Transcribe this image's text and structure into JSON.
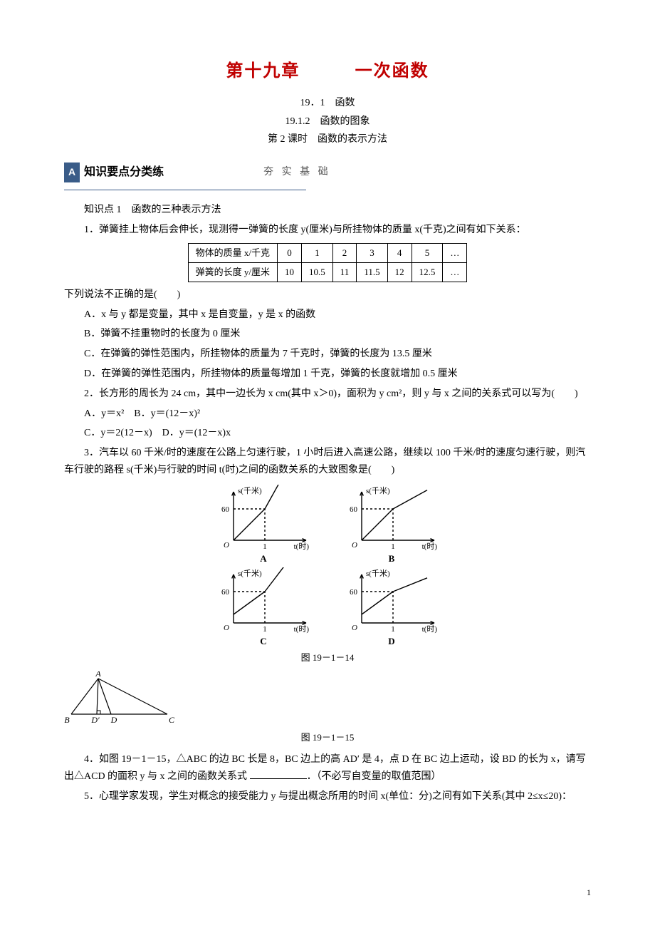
{
  "chapter": {
    "left": "第十九章",
    "right": "一次函数"
  },
  "headings": {
    "h1": "19．1　函数",
    "h2": "19.1.2　函数的图象",
    "h3": "第 2 课时　函数的表示方法"
  },
  "banner": {
    "box": "A",
    "text": "知识要点分类练",
    "tail": "夯 实 基 础"
  },
  "kp1_title": "知识点 1　函数的三种表示方法",
  "q1": {
    "stem": "1．弹簧挂上物体后会伸长，现测得一弹簧的长度 y(厘米)与所挂物体的质量 x(千克)之间有如下关系：",
    "table": {
      "row1_header": "物体的质量 x/千克",
      "row2_header": "弹簧的长度 y/厘米",
      "cols": [
        "0",
        "1",
        "2",
        "3",
        "4",
        "5",
        "…"
      ],
      "row2": [
        "10",
        "10.5",
        "11",
        "11.5",
        "12",
        "12.5",
        "…"
      ]
    },
    "tail": "下列说法不正确的是(　　)",
    "optA": "A．x 与 y 都是变量，其中 x 是自变量，y 是 x 的函数",
    "optB": "B．弹簧不挂重物时的长度为 0 厘米",
    "optC": "C．在弹簧的弹性范围内，所挂物体的质量为 7 千克时，弹簧的长度为 13.5 厘米",
    "optD": "D．在弹簧的弹性范围内，所挂物体的质量每增加 1 千克，弹簧的长度就增加 0.5 厘米"
  },
  "q2": {
    "stem": "2．长方形的周长为 24 cm，其中一边长为 x cm(其中 x＞0)，面积为 y cm²，则 y 与 x 之间的关系式可以写为(　　)",
    "optA": "A．y＝x²　B．y＝(12－x)²",
    "optC": "C．y＝2(12－x)　D．y＝(12－x)x"
  },
  "q3": {
    "stem": "3．汽车以 60 千米/时的速度在公路上匀速行驶，1 小时后进入高速公路，继续以 100 千米/时的速度匀速行驶，则汽车行驶的路程 s(千米)与行驶的时间 t(时)之间的函数关系的大致图象是(　　)",
    "charts": {
      "yLabel": "s(千米)",
      "xLabel": "t(时)",
      "yTick": "60",
      "xTick": "1",
      "labels": [
        "A",
        "B",
        "C",
        "D"
      ],
      "variants": [
        {
          "startAtOrigin": true,
          "steeperAfter": true
        },
        {
          "startAtOrigin": true,
          "steeperAfter": false
        },
        {
          "startAtOrigin": false,
          "steeperAfter": true
        },
        {
          "startAtOrigin": false,
          "steeperAfter": false
        }
      ],
      "axis_color": "#000",
      "dash_color": "#000",
      "line_width": 1.4
    },
    "fig14": "图 19－1－14"
  },
  "triangle": {
    "labels": {
      "A": "A",
      "B": "B",
      "C": "C",
      "D": "D",
      "Dp": "D'"
    },
    "coords": {
      "B": [
        10,
        60
      ],
      "Dp": [
        46,
        60
      ],
      "D": [
        66,
        60
      ],
      "C": [
        145,
        60
      ],
      "A": [
        48,
        10
      ]
    },
    "line_width": 1.2,
    "color": "#000"
  },
  "fig15": "图 19－1－15",
  "q4": {
    "stem_a": "4．如图 19－1－15，△ABC 的边 BC 长是 8，BC 边上的高 AD′ 是 4，点 D 在 BC 边上运动，设 BD 的长为 x，请写出△ACD 的面积 y 与 x 之间的函数关系式 ",
    "stem_b": "．（不必写自变量的取值范围）"
  },
  "q5": {
    "stem": "5．心理学家发现，学生对概念的接受能力 y 与提出概念所用的时间 x(单位：分)之间有如下关系(其中 2≤x≤20)："
  },
  "page_number": "1"
}
